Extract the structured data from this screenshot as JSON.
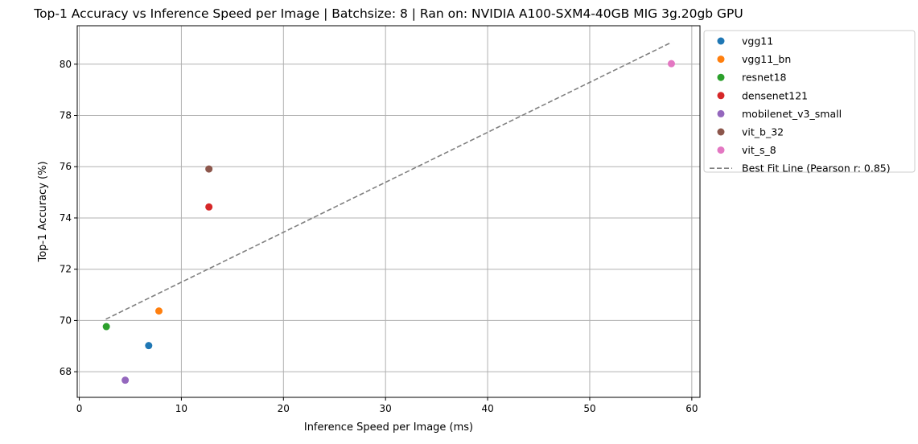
{
  "chart_data": {
    "type": "scatter",
    "title": "Top-1 Accuracy vs Inference Speed per Image | Batchsize: 8 | Ran on: NVIDIA A100-SXM4-40GB MIG 3g.20gb GPU",
    "xlabel": "Inference Speed per Image (ms)",
    "ylabel": "Top-1 Accuracy (%)",
    "xlim": [
      -0.2,
      60.8
    ],
    "ylim": [
      67.0,
      81.5
    ],
    "xticks": [
      0,
      10,
      20,
      30,
      40,
      50,
      60
    ],
    "yticks": [
      68,
      70,
      72,
      74,
      76,
      78,
      80
    ],
    "grid": true,
    "legend_position": "outside-top-right",
    "series": [
      {
        "name": "vgg11",
        "color": "#1f77b4",
        "x": 6.8,
        "y": 69.02
      },
      {
        "name": "vgg11_bn",
        "color": "#ff7f0e",
        "x": 7.8,
        "y": 70.37
      },
      {
        "name": "resnet18",
        "color": "#2ca02c",
        "x": 2.65,
        "y": 69.76
      },
      {
        "name": "densenet121",
        "color": "#d62728",
        "x": 12.7,
        "y": 74.43
      },
      {
        "name": "mobilenet_v3_small",
        "color": "#9467bd",
        "x": 4.5,
        "y": 67.67
      },
      {
        "name": "vit_b_32",
        "color": "#8c564b",
        "x": 12.7,
        "y": 75.91
      },
      {
        "name": "vit_s_8",
        "color": "#e377c2",
        "x": 58.0,
        "y": 80.02
      }
    ],
    "fit_line": {
      "name": "Best Fit Line (Pearson r: 0.85)",
      "color": "#808080",
      "x": [
        2.6,
        58.0
      ],
      "y": [
        70.05,
        80.85
      ]
    }
  }
}
